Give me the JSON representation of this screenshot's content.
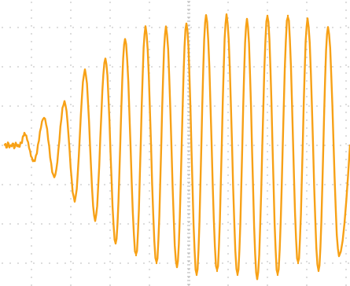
{
  "chart_data": {
    "type": "line",
    "title": "",
    "xlabel": "",
    "ylabel": "",
    "grid": true,
    "x_divisions": 8.9,
    "y_divisions": 7,
    "ylim": [
      -3.5,
      3.5
    ],
    "xlim": [
      0,
      8.9
    ],
    "trace_color": "#f7a116",
    "grid_color": "#b9b9b9",
    "series": [
      {
        "values_description_free": true,
        "signal_model": {
          "cycles_per_division": 1.9,
          "baseline_until_div": 0.75,
          "final_amplitude_div": 3.0,
          "growth_end_div": 5.0,
          "offset_div": -0.15
        },
        "peaks": [
          {
            "x": 0.82,
            "y": 0.3
          },
          {
            "x": 1.32,
            "y": 0.7
          },
          {
            "x": 1.84,
            "y": 1.1
          },
          {
            "x": 2.36,
            "y": 1.9
          },
          {
            "x": 2.88,
            "y": 2.2
          },
          {
            "x": 3.38,
            "y": 2.7
          },
          {
            "x": 3.9,
            "y": 3.0
          },
          {
            "x": 4.42,
            "y": 3.0
          },
          {
            "x": 4.94,
            "y": 3.1
          },
          {
            "x": 5.44,
            "y": 3.3
          },
          {
            "x": 5.96,
            "y": 3.3
          },
          {
            "x": 6.48,
            "y": 3.2
          },
          {
            "x": 7.0,
            "y": 3.3
          },
          {
            "x": 7.52,
            "y": 3.3
          },
          {
            "x": 8.02,
            "y": 3.2
          },
          {
            "x": 8.54,
            "y": 3.0
          }
        ],
        "troughs": [
          {
            "x": 1.06,
            "y": -0.4
          },
          {
            "x": 1.58,
            "y": -0.8
          },
          {
            "x": 2.1,
            "y": -1.4
          },
          {
            "x": 2.62,
            "y": -1.9
          },
          {
            "x": 3.14,
            "y": -2.5
          },
          {
            "x": 3.66,
            "y": -2.8
          },
          {
            "x": 4.18,
            "y": -3.0
          },
          {
            "x": 4.7,
            "y": -3.1
          },
          {
            "x": 5.2,
            "y": -3.3
          },
          {
            "x": 5.72,
            "y": -3.2
          },
          {
            "x": 6.24,
            "y": -3.3
          },
          {
            "x": 6.74,
            "y": -3.4
          },
          {
            "x": 7.26,
            "y": -3.3
          },
          {
            "x": 7.78,
            "y": -3.0
          },
          {
            "x": 8.3,
            "y": -3.2
          },
          {
            "x": 8.82,
            "y": -2.8
          }
        ]
      }
    ]
  }
}
